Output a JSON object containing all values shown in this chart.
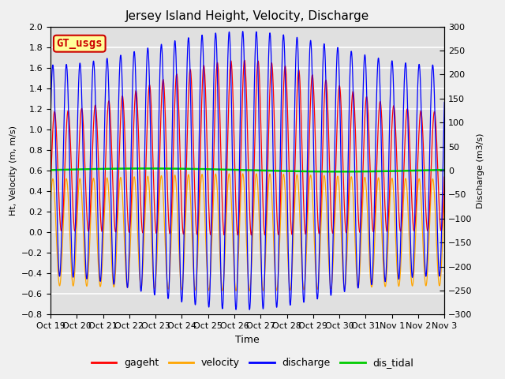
{
  "title": "Jersey Island Height, Velocity, Discharge",
  "ylabel_left": "Ht, Velocity (m, m/s)",
  "ylabel_right": "Discharge (m3/s)",
  "xlabel": "Time",
  "ylim_left": [
    -0.8,
    2.0
  ],
  "ylim_right": [
    -300,
    300
  ],
  "legend_labels": [
    "gageht",
    "velocity",
    "discharge",
    "dis_tidal"
  ],
  "legend_colors": [
    "#ff0000",
    "#ffa500",
    "#0000ff",
    "#00cc00"
  ],
  "watermark_text": "GT_usgs",
  "watermark_fgcolor": "#cc0000",
  "watermark_bgcolor": "#ffff99",
  "plot_bg_color": "#e0e0e0",
  "fig_bg_color": "#f0f0f0",
  "grid_color": "#ffffff",
  "title_fontsize": 11,
  "x_tick_labels": [
    "Oct 19",
    "Oct 20",
    "Oct 21",
    "Oct 22",
    "Oct 23",
    "Oct 24",
    "Oct 25",
    "Oct 26",
    "Oct 27",
    "Oct 28",
    "Oct 29",
    "Oct 30",
    "Oct 31",
    "Nov 1",
    "Nov 2",
    "Nov 3"
  ],
  "tidal_period_hours": 12.4,
  "spring_neap_period_days": 14.7,
  "dis_tidal_value": 0.605
}
